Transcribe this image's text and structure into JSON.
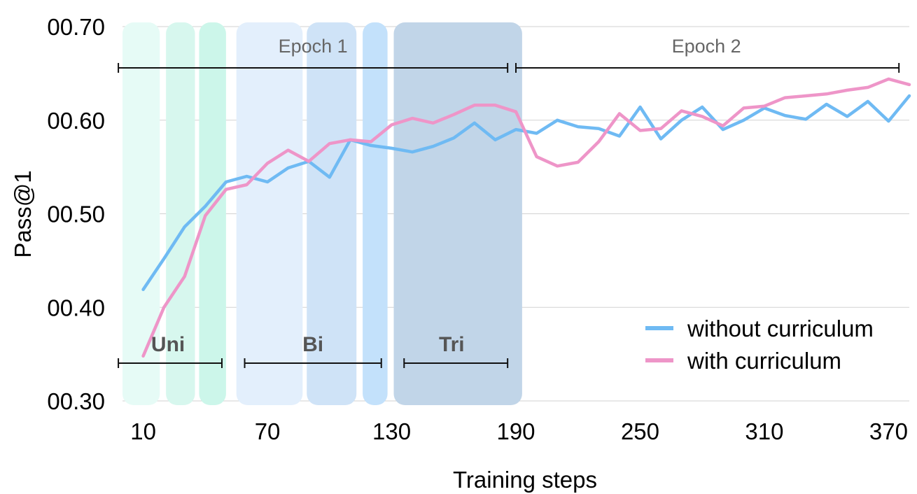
{
  "chart_data": {
    "type": "line",
    "xlabel": "Training steps",
    "ylabel": "Pass@1",
    "xlim": [
      0,
      380
    ],
    "ylim": [
      0.3,
      0.7
    ],
    "x_ticks": [
      10,
      70,
      130,
      190,
      250,
      310,
      370
    ],
    "x_tick_labels": [
      "10",
      "70",
      "130",
      "190",
      "250",
      "310",
      "370"
    ],
    "y_ticks": [
      0.3,
      0.4,
      0.5,
      0.6,
      0.7
    ],
    "y_tick_labels": [
      "00.30",
      "00.40",
      "00.50",
      "00.60",
      "00.70"
    ],
    "grid": "horizontal",
    "legend_position": "bottom-right",
    "series": [
      {
        "name": "without curriculum",
        "color": "#6fbaf3",
        "x": [
          10,
          20,
          30,
          40,
          50,
          60,
          70,
          80,
          90,
          100,
          110,
          120,
          130,
          140,
          150,
          160,
          170,
          180,
          190,
          200,
          210,
          220,
          230,
          240,
          250,
          260,
          270,
          280,
          290,
          300,
          310,
          320,
          330,
          340,
          350,
          360,
          370,
          380
        ],
        "y": [
          0.419,
          0.452,
          0.486,
          0.508,
          0.534,
          0.54,
          0.534,
          0.549,
          0.556,
          0.539,
          0.579,
          0.573,
          0.57,
          0.566,
          0.572,
          0.581,
          0.597,
          0.579,
          0.59,
          0.586,
          0.6,
          0.593,
          0.591,
          0.583,
          0.614,
          0.58,
          0.6,
          0.614,
          0.59,
          0.6,
          0.613,
          0.605,
          0.601,
          0.617,
          0.604,
          0.62,
          0.599,
          0.626
        ]
      },
      {
        "name": "with curriculum",
        "color": "#ee95c8",
        "x": [
          10,
          20,
          30,
          40,
          50,
          60,
          70,
          80,
          90,
          100,
          110,
          120,
          130,
          140,
          150,
          160,
          170,
          180,
          190,
          200,
          210,
          220,
          230,
          240,
          250,
          260,
          270,
          280,
          290,
          300,
          310,
          320,
          330,
          340,
          350,
          360,
          370,
          380
        ],
        "y": [
          0.348,
          0.4,
          0.433,
          0.498,
          0.526,
          0.531,
          0.554,
          0.568,
          0.556,
          0.575,
          0.579,
          0.577,
          0.595,
          0.602,
          0.597,
          0.606,
          0.616,
          0.616,
          0.609,
          0.561,
          0.551,
          0.555,
          0.577,
          0.607,
          0.589,
          0.591,
          0.61,
          0.604,
          0.594,
          0.613,
          0.615,
          0.624,
          0.626,
          0.628,
          0.632,
          0.635,
          0.644,
          0.638
        ]
      }
    ],
    "shaded_regions": [
      {
        "x0": 0,
        "x1": 18,
        "color": "#e6fbf6"
      },
      {
        "x0": 21,
        "x1": 35,
        "color": "#d7f7ee"
      },
      {
        "x0": 37,
        "x1": 50,
        "color": "#ccf6ea"
      },
      {
        "x0": 55,
        "x1": 87,
        "color": "#e3effc"
      },
      {
        "x0": 89,
        "x1": 113,
        "color": "#cfe3f7"
      },
      {
        "x0": 116,
        "x1": 128,
        "color": "#c3e1fb"
      },
      {
        "x0": 131,
        "x1": 193,
        "color": "#c1d5e8"
      }
    ],
    "phase_annotations": [
      {
        "label": "Uni",
        "x0": -2,
        "x1": 48,
        "label_x": 22
      },
      {
        "label": "Bi",
        "x0": 59,
        "x1": 125,
        "label_x": 92
      },
      {
        "label": "Tri",
        "x0": 136,
        "x1": 186,
        "label_x": 159
      }
    ],
    "epoch_annotations": [
      {
        "label": "Epoch 1",
        "x0": -2,
        "x1": 186,
        "label_x": 92
      },
      {
        "label": "Epoch 2",
        "x0": 190,
        "x1": 375,
        "label_x": 282
      }
    ]
  }
}
